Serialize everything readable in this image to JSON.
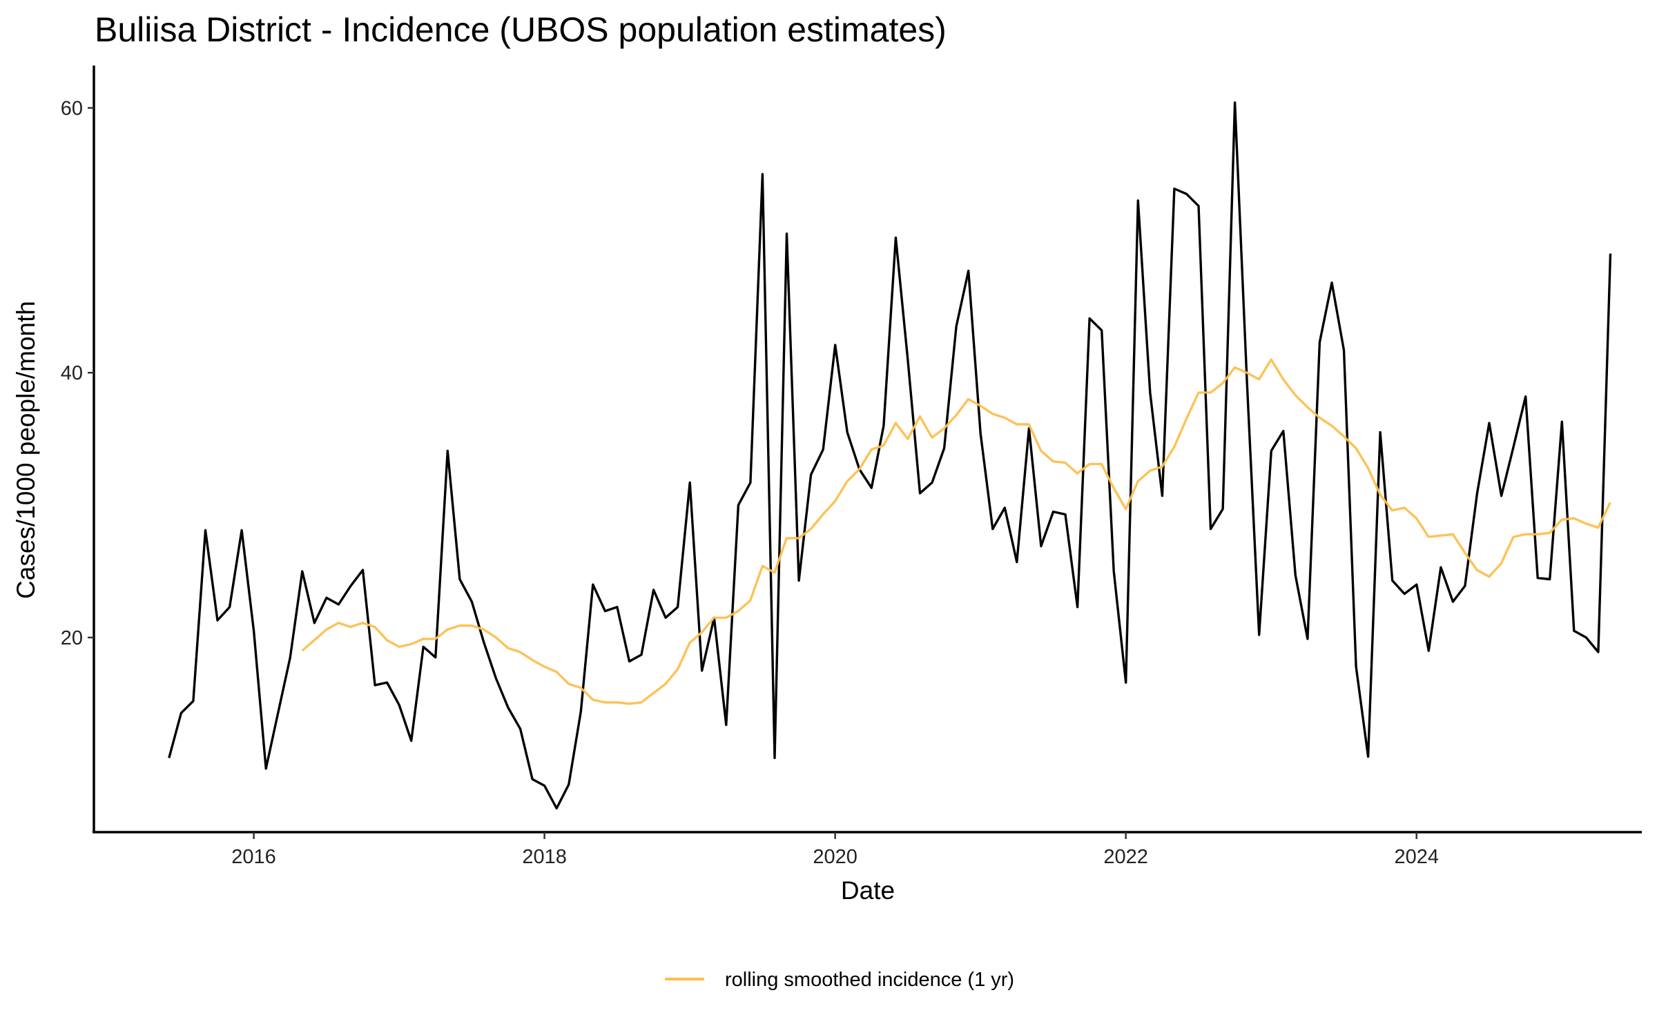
{
  "chart_data": {
    "type": "line",
    "title": "Buliisa District - Incidence (UBOS population estimates)",
    "xlabel": "Date",
    "ylabel": "Cases/1000 people/month",
    "xlim": [
      2014.9,
      2025.55
    ],
    "ylim": [
      5.3,
      63.2
    ],
    "x_ticks": [
      2016,
      2018,
      2020,
      2022,
      2024
    ],
    "x_tick_labels": [
      "2016",
      "2018",
      "2020",
      "2022",
      "2024"
    ],
    "y_ticks": [
      20,
      40,
      60
    ],
    "y_tick_labels": [
      "20",
      "40",
      "60"
    ],
    "grid": false,
    "legend": {
      "position": "bottom",
      "entries": [
        "rolling smoothed incidence (1 yr)"
      ]
    },
    "x_start": 2015.417,
    "x_step_months": 1,
    "series": [
      {
        "name": "incidence",
        "color": "#000000",
        "in_legend": false,
        "start": 2015.417,
        "values": [
          10.9,
          14.3,
          15.2,
          28.1,
          21.3,
          22.3,
          28.1,
          20.5,
          10.1,
          14.3,
          18.5,
          25.0,
          21.1,
          23.0,
          22.5,
          23.9,
          25.1,
          16.4,
          16.6,
          14.9,
          12.2,
          19.3,
          18.5,
          34.1,
          24.4,
          22.7,
          19.6,
          16.9,
          14.7,
          13.1,
          9.3,
          8.8,
          7.1,
          8.9,
          14.4,
          24.0,
          22.0,
          22.3,
          18.2,
          18.7,
          23.6,
          21.5,
          22.3,
          31.7,
          17.5,
          21.5,
          13.4,
          30.0,
          31.7,
          55.0,
          10.9,
          50.5,
          24.3,
          32.3,
          34.2,
          42.1,
          35.5,
          32.7,
          31.3,
          36.0,
          50.2,
          40.9,
          30.9,
          31.7,
          34.3,
          43.5,
          47.7,
          35.4,
          28.2,
          29.8,
          25.7,
          35.8,
          26.9,
          29.5,
          29.3,
          22.3,
          44.1,
          43.2,
          25.0,
          16.6,
          53.0,
          38.5,
          30.7,
          53.9,
          53.5,
          52.6,
          28.2,
          29.7,
          60.4,
          39.2,
          20.2,
          34.1,
          35.6,
          24.7,
          19.9,
          42.3,
          46.8,
          41.7,
          17.8,
          11.0,
          35.5,
          24.3,
          23.3,
          24.0,
          19.0,
          25.3,
          22.7,
          23.9,
          30.9,
          36.2,
          30.7,
          34.4,
          38.2,
          24.5,
          24.4,
          36.3,
          20.5,
          20.0,
          18.9,
          49.0
        ]
      },
      {
        "name": "rolling smoothed incidence (1 yr)",
        "color": "#FDBF4E",
        "in_legend": true,
        "start": 2016.333,
        "values": [
          19.0,
          19.8,
          20.6,
          21.1,
          20.8,
          21.1,
          20.8,
          19.8,
          19.3,
          19.5,
          19.9,
          19.9,
          20.6,
          20.9,
          20.9,
          20.6,
          20.0,
          19.2,
          18.9,
          18.3,
          17.8,
          17.4,
          16.5,
          16.2,
          15.3,
          15.1,
          15.1,
          15.0,
          15.1,
          15.8,
          16.5,
          17.6,
          19.6,
          20.4,
          21.5,
          21.5,
          22.0,
          22.8,
          25.4,
          24.9,
          27.5,
          27.5,
          28.2,
          29.3,
          30.3,
          31.8,
          32.7,
          34.2,
          34.5,
          36.2,
          35.0,
          36.7,
          35.1,
          35.8,
          36.8,
          38.0,
          37.5,
          36.9,
          36.6,
          36.1,
          36.1,
          34.1,
          33.3,
          33.2,
          32.4,
          33.1,
          33.1,
          31.3,
          29.7,
          31.8,
          32.6,
          32.9,
          34.4,
          36.5,
          38.5,
          38.5,
          39.2,
          40.4,
          40.0,
          39.5,
          41.0,
          39.5,
          38.3,
          37.4,
          36.6,
          36.0,
          35.2,
          34.3,
          32.8,
          30.8,
          29.6,
          29.8,
          29.0,
          27.6,
          27.7,
          27.8,
          26.4,
          25.1,
          24.6,
          25.6,
          27.6,
          27.8,
          27.8,
          27.9,
          28.9,
          29.0,
          28.6,
          28.3,
          30.2
        ]
      }
    ]
  }
}
